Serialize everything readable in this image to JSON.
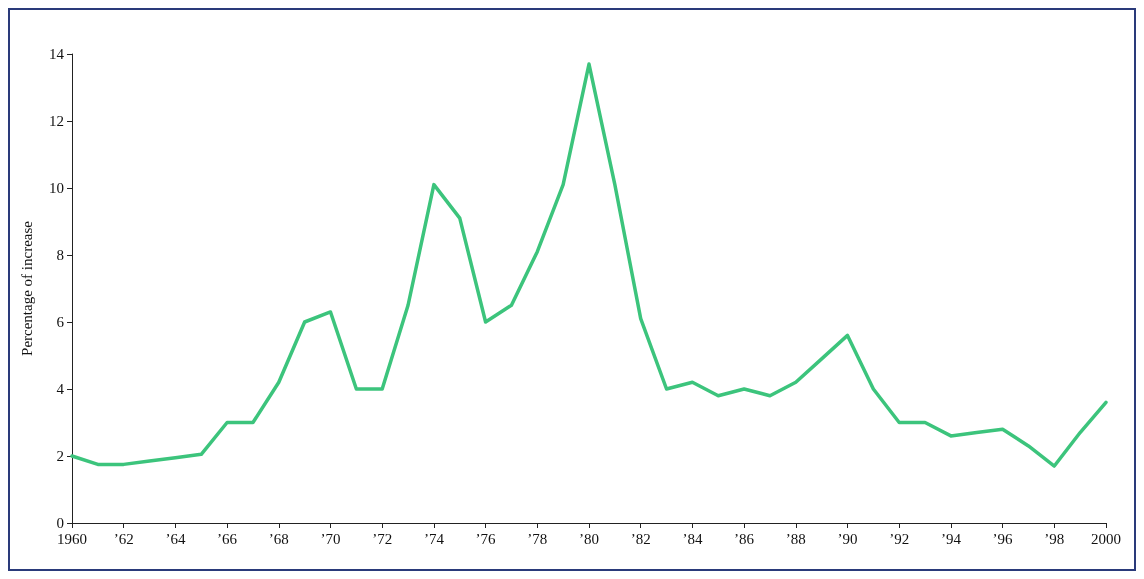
{
  "chart_data": {
    "type": "line",
    "ylabel": "Percentage of increase",
    "x": [
      1960,
      1961,
      1962,
      1963,
      1964,
      1965,
      1966,
      1967,
      1968,
      1969,
      1970,
      1971,
      1972,
      1973,
      1974,
      1975,
      1976,
      1977,
      1978,
      1979,
      1980,
      1981,
      1982,
      1983,
      1984,
      1985,
      1986,
      1987,
      1988,
      1989,
      1990,
      1991,
      1992,
      1993,
      1994,
      1995,
      1996,
      1997,
      1998,
      1999,
      2000
    ],
    "series": [
      {
        "color": "#3cc47c",
        "values": [
          2.0,
          1.75,
          1.75,
          1.85,
          1.95,
          2.05,
          3.0,
          3.0,
          4.2,
          6.0,
          6.3,
          4.0,
          4.0,
          6.5,
          10.1,
          9.1,
          6.0,
          6.5,
          8.1,
          10.1,
          13.7,
          10.1,
          6.1,
          4.0,
          4.2,
          3.8,
          4.0,
          3.8,
          4.2,
          4.9,
          5.6,
          4.0,
          3.0,
          3.0,
          2.6,
          2.7,
          2.8,
          2.3,
          1.7,
          2.7,
          3.6
        ]
      }
    ],
    "xlim": [
      1960,
      2000
    ],
    "xticks": [
      1960,
      {
        "value": 1962,
        "label": "’62"
      },
      {
        "value": 1964,
        "label": "’64"
      },
      {
        "value": 1966,
        "label": "’66"
      },
      {
        "value": 1968,
        "label": "’68"
      },
      {
        "value": 1970,
        "label": "’70"
      },
      {
        "value": 1972,
        "label": "’72"
      },
      {
        "value": 1974,
        "label": "’74"
      },
      {
        "value": 1976,
        "label": "’76"
      },
      {
        "value": 1978,
        "label": "’78"
      },
      {
        "value": 1980,
        "label": "’80"
      },
      {
        "value": 1982,
        "label": "’82"
      },
      {
        "value": 1984,
        "label": "’84"
      },
      {
        "value": 1986,
        "label": "’86"
      },
      {
        "value": 1988,
        "label": "’88"
      },
      {
        "value": 1990,
        "label": "’90"
      },
      {
        "value": 1992,
        "label": "’92"
      },
      {
        "value": 1994,
        "label": "’94"
      },
      {
        "value": 1996,
        "label": "’96"
      },
      {
        "value": 1998,
        "label": "’98"
      },
      2000
    ],
    "ylim": [
      0,
      14
    ],
    "yticks": [
      0,
      2,
      4,
      6,
      8,
      10,
      12,
      14
    ],
    "grid": false,
    "marker": "none",
    "line_style": "solid"
  }
}
